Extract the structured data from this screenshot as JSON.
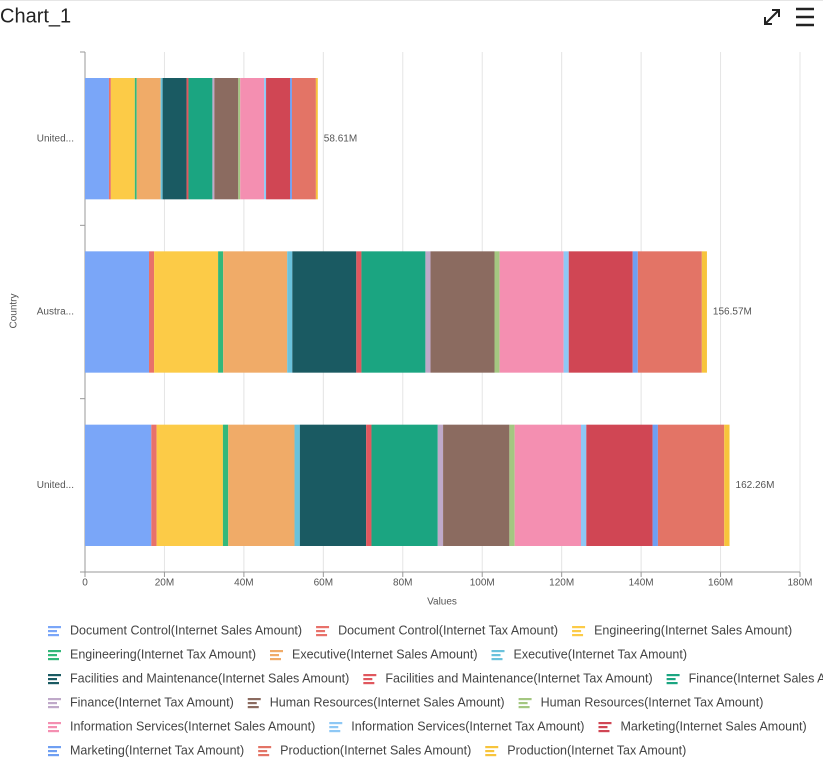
{
  "chart_data": {
    "type": "stacked-barh",
    "title": "Chart_1",
    "x_label": "Values",
    "y_label": "Country",
    "categories": [
      "United...",
      "Austra...",
      "United..."
    ],
    "series": [
      {
        "name": "Document Control(Internet Sales Amount)",
        "color": "#7aa6f8",
        "values": [
          6030000,
          16110000,
          16690000
        ]
      },
      {
        "name": "Document Control(Internet Tax Amount)",
        "color": "#e8716a",
        "values": [
          482000,
          1287000,
          1339000
        ]
      },
      {
        "name": "Engineering(Internet Sales Amount)",
        "color": "#fccb47",
        "values": [
          6030000,
          16110000,
          16690000
        ]
      },
      {
        "name": "Engineering(Internet Tax Amount)",
        "color": "#33b87a",
        "values": [
          482000,
          1287000,
          1339000
        ]
      },
      {
        "name": "Executive(Internet Sales Amount)",
        "color": "#f0ab68",
        "values": [
          6030000,
          16110000,
          16690000
        ]
      },
      {
        "name": "Executive(Internet Tax Amount)",
        "color": "#6ac2dc",
        "values": [
          482000,
          1287000,
          1339000
        ]
      },
      {
        "name": "Facilities and Maintenance(Internet Sales Amount)",
        "color": "#1a5a62",
        "values": [
          6030000,
          16110000,
          16690000
        ]
      },
      {
        "name": "Facilities and Maintenance(Internet Tax Amount)",
        "color": "#e0575e",
        "values": [
          482000,
          1287000,
          1339000
        ]
      },
      {
        "name": "Finance(Internet Sales Amount)",
        "color": "#1ba581",
        "values": [
          6030000,
          16110000,
          16690000
        ]
      },
      {
        "name": "Finance(Internet Tax Amount)",
        "color": "#bfa9c9",
        "values": [
          482000,
          1287000,
          1339000
        ]
      },
      {
        "name": "Human Resources(Internet Sales Amount)",
        "color": "#8b6b60",
        "values": [
          6030000,
          16110000,
          16690000
        ]
      },
      {
        "name": "Human Resources(Internet Tax Amount)",
        "color": "#a4c781",
        "values": [
          482000,
          1287000,
          1339000
        ]
      },
      {
        "name": "Information Services(Internet Sales Amount)",
        "color": "#f48fb1",
        "values": [
          6030000,
          16110000,
          16690000
        ]
      },
      {
        "name": "Information Services(Internet Tax Amount)",
        "color": "#8ec8f5",
        "values": [
          482000,
          1287000,
          1339000
        ]
      },
      {
        "name": "Marketing(Internet Sales Amount)",
        "color": "#d04654",
        "values": [
          6030000,
          16110000,
          16690000
        ]
      },
      {
        "name": "Marketing(Internet Tax Amount)",
        "color": "#6f9ff2",
        "values": [
          482000,
          1287000,
          1339000
        ]
      },
      {
        "name": "Production(Internet Sales Amount)",
        "color": "#e37466",
        "values": [
          6030000,
          16110000,
          16690000
        ]
      },
      {
        "name": "Production(Internet Tax Amount)",
        "color": "#f7c43c",
        "values": [
          482000,
          1287000,
          1339000
        ]
      }
    ],
    "totals": [
      58610000,
      156570000,
      162260000
    ],
    "total_labels": [
      "58.61M",
      "156.57M",
      "162.26M"
    ],
    "xlim": [
      0,
      180000000
    ],
    "xticks": [
      0,
      {
        "value": 20000000,
        "label": "20M"
      },
      {
        "value": 40000000,
        "label": "40M"
      },
      {
        "value": 60000000,
        "label": "60M"
      },
      {
        "value": 80000000,
        "label": "80M"
      },
      {
        "value": 100000000,
        "label": "100M"
      },
      {
        "value": 120000000,
        "label": "120M"
      },
      {
        "value": 140000000,
        "label": "140M"
      },
      {
        "value": 160000000,
        "label": "160M"
      },
      {
        "value": 180000000,
        "label": "180M"
      }
    ],
    "grid": true,
    "legend": "bottom"
  }
}
